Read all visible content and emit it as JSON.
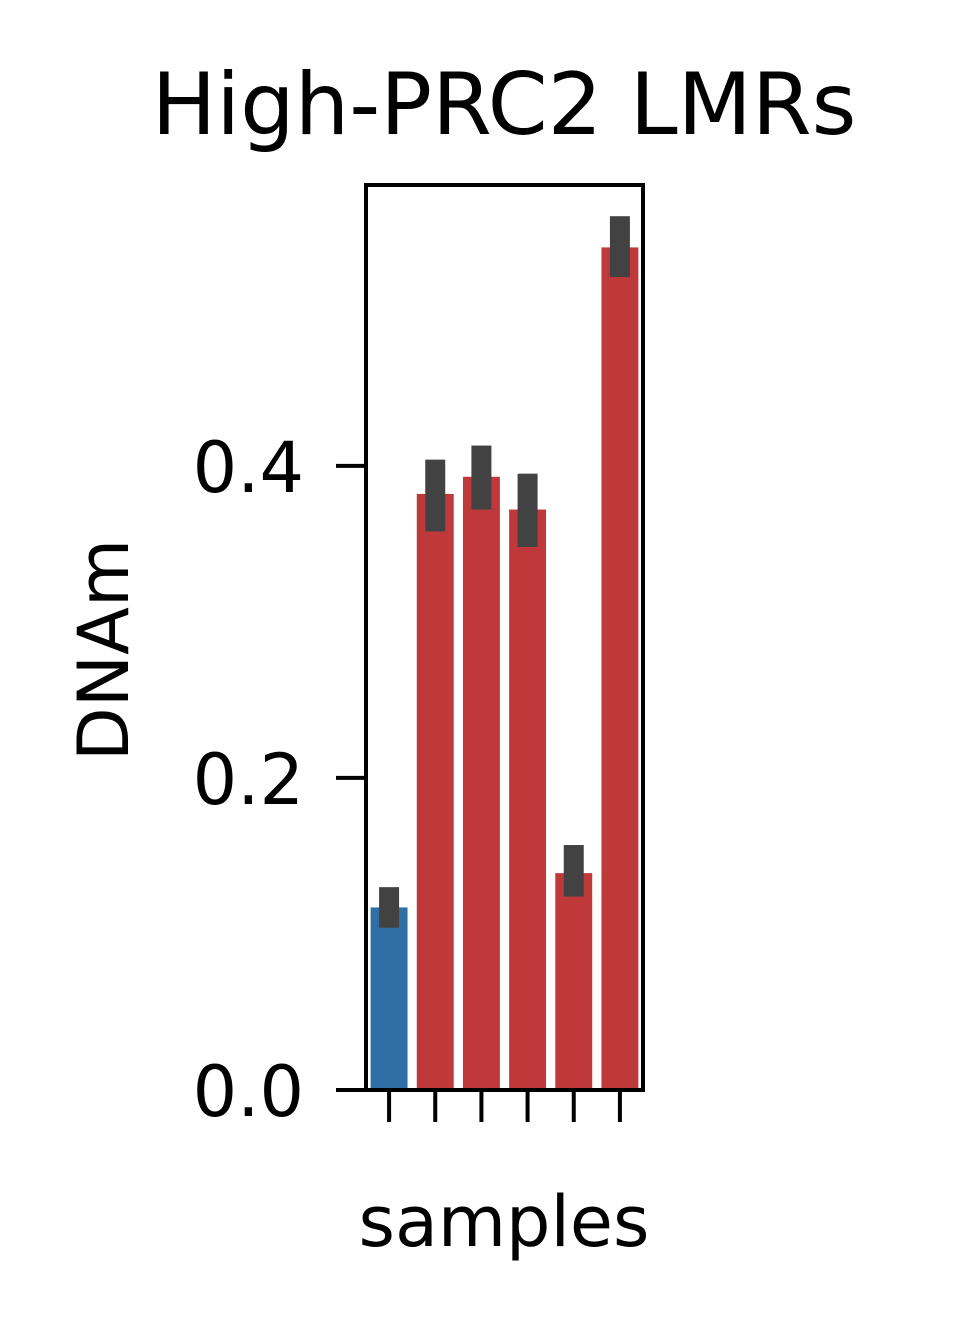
{
  "chart_data": {
    "type": "bar",
    "title": "High-PRC2 LMRs",
    "xlabel": "samples",
    "ylabel": "DNAm",
    "ylim": [
      0,
      0.58
    ],
    "yticks": [
      {
        "value": 0.0,
        "label": "0.0"
      },
      {
        "value": 0.2,
        "label": "0.2"
      },
      {
        "value": 0.4,
        "label": "0.4"
      }
    ],
    "x_tick_labels_shown": false,
    "grid": false,
    "legend": "none",
    "bars": [
      {
        "value": 0.117,
        "err_low": 0.104,
        "err_high": 0.13,
        "color": "#2f6fa5"
      },
      {
        "value": 0.382,
        "err_low": 0.358,
        "err_high": 0.404,
        "color": "#bf393b"
      },
      {
        "value": 0.393,
        "err_low": 0.372,
        "err_high": 0.413,
        "color": "#bf393b"
      },
      {
        "value": 0.372,
        "err_low": 0.348,
        "err_high": 0.395,
        "color": "#bf393b"
      },
      {
        "value": 0.139,
        "err_low": 0.124,
        "err_high": 0.157,
        "color": "#bf393b"
      },
      {
        "value": 0.54,
        "err_low": 0.521,
        "err_high": 0.56,
        "color": "#bf393b"
      }
    ],
    "errorbar_color": "#424242"
  }
}
